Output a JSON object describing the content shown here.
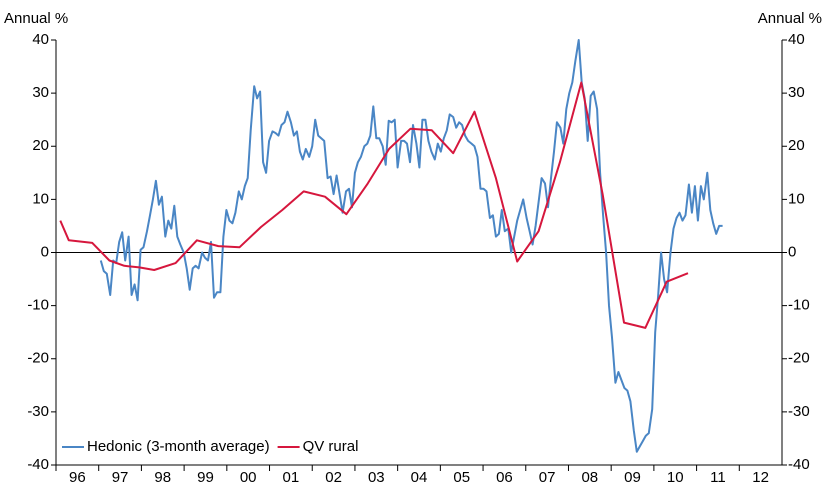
{
  "chart_data": {
    "type": "line",
    "ylabel": "Annual %",
    "y2label": "Annual %",
    "xlim": [
      1996,
      2013
    ],
    "xticks": [
      {
        "value": 1996.5,
        "label": "96"
      },
      {
        "value": 1997.5,
        "label": "97"
      },
      {
        "value": 1998.5,
        "label": "98"
      },
      {
        "value": 1999.5,
        "label": "99"
      },
      {
        "value": 2000.5,
        "label": "00"
      },
      {
        "value": 2001.5,
        "label": "01"
      },
      {
        "value": 2002.5,
        "label": "02"
      },
      {
        "value": 2003.5,
        "label": "03"
      },
      {
        "value": 2004.5,
        "label": "04"
      },
      {
        "value": 2005.5,
        "label": "05"
      },
      {
        "value": 2006.5,
        "label": "06"
      },
      {
        "value": 2007.5,
        "label": "07"
      },
      {
        "value": 2008.5,
        "label": "08"
      },
      {
        "value": 2009.5,
        "label": "09"
      },
      {
        "value": 2010.5,
        "label": "10"
      },
      {
        "value": 2011.5,
        "label": "11"
      },
      {
        "value": 2012.5,
        "label": "12"
      }
    ],
    "ylim": [
      -40,
      40
    ],
    "yticks": [
      -40,
      -30,
      -20,
      -10,
      0,
      10,
      20,
      30,
      40
    ],
    "y2lim": [
      -40,
      40
    ],
    "y2ticks": [
      -40,
      -30,
      -20,
      -10,
      0,
      10,
      20,
      30,
      40
    ],
    "legend": "lower left",
    "series": [
      {
        "name": "Hedonic (3-month average)",
        "color": "#4a86c5",
        "x": [
          1997.05,
          1997.12,
          1997.19,
          1997.27,
          1997.34,
          1997.41,
          1997.48,
          1997.55,
          1997.62,
          1997.7,
          1997.77,
          1997.84,
          1997.91,
          1997.98,
          1998.05,
          1998.13,
          1998.2,
          1998.27,
          1998.34,
          1998.41,
          1998.48,
          1998.56,
          1998.63,
          1998.7,
          1998.77,
          1998.84,
          1998.91,
          1998.99,
          1999.06,
          1999.13,
          1999.2,
          1999.27,
          1999.34,
          1999.42,
          1999.49,
          1999.56,
          1999.63,
          1999.7,
          1999.77,
          1999.85,
          1999.92,
          1999.99,
          2000.06,
          2000.13,
          2000.2,
          2000.28,
          2000.35,
          2000.42,
          2000.49,
          2000.56,
          2000.64,
          2000.71,
          2000.78,
          2000.85,
          2000.92,
          2000.99,
          2001.07,
          2001.14,
          2001.21,
          2001.28,
          2001.35,
          2001.42,
          2001.5,
          2001.57,
          2001.64,
          2001.71,
          2001.78,
          2001.85,
          2001.93,
          2002.0,
          2002.07,
          2002.14,
          2002.21,
          2002.28,
          2002.36,
          2002.43,
          2002.5,
          2002.57,
          2002.64,
          2002.71,
          2002.79,
          2002.86,
          2002.93,
          2003.0,
          2003.07,
          2003.14,
          2003.22,
          2003.29,
          2003.36,
          2003.43,
          2003.5,
          2003.57,
          2003.65,
          2003.72,
          2003.79,
          2003.86,
          2003.93,
          2004.0,
          2004.08,
          2004.15,
          2004.22,
          2004.29,
          2004.36,
          2004.44,
          2004.51,
          2004.58,
          2004.65,
          2004.72,
          2004.79,
          2004.87,
          2004.94,
          2005.01,
          2005.08,
          2005.15,
          2005.22,
          2005.3,
          2005.37,
          2005.44,
          2005.51,
          2005.58,
          2005.65,
          2005.73,
          2005.8,
          2005.87,
          2005.94,
          2006.01,
          2006.08,
          2006.16,
          2006.23,
          2006.3,
          2006.37,
          2006.44,
          2006.51,
          2006.59,
          2006.66,
          2006.73,
          2006.8,
          2006.87,
          2006.94,
          2007.02,
          2007.09,
          2007.16,
          2007.23,
          2007.3,
          2007.37,
          2007.45,
          2007.52,
          2007.59,
          2007.66,
          2007.73,
          2007.81,
          2007.88,
          2007.95,
          2008.02,
          2008.09,
          2008.16,
          2008.24,
          2008.31,
          2008.38,
          2008.45,
          2008.52,
          2008.59,
          2008.67,
          2008.74,
          2008.81,
          2008.88,
          2008.95,
          2009.02,
          2009.1,
          2009.17,
          2009.24,
          2009.31,
          2009.38,
          2009.45,
          2009.53,
          2009.6,
          2009.67,
          2009.74,
          2009.81,
          2009.88,
          2009.96,
          2010.03,
          2010.1,
          2010.17,
          2010.24,
          2010.31,
          2010.39,
          2010.46,
          2010.53,
          2010.6,
          2010.67,
          2010.74,
          2010.82,
          2010.89,
          2010.96,
          2011.03,
          2011.1,
          2011.17,
          2011.25,
          2011.32,
          2011.39,
          2011.46,
          2011.53,
          2011.61
        ],
        "values": [
          -1.5,
          -3.5,
          -4,
          -8,
          -1.5,
          -2,
          2,
          3.8,
          -1.5,
          3,
          -8,
          -6,
          -9,
          0.5,
          1,
          4,
          7,
          10,
          13.5,
          9,
          10.5,
          3,
          6,
          4.5,
          8.8,
          3,
          1.5,
          0,
          -3,
          -7,
          -3,
          -2.5,
          -3,
          0,
          -1,
          -1.5,
          2,
          -8.5,
          -7.5,
          -7.5,
          3,
          8,
          6,
          5.5,
          7.5,
          11.5,
          10,
          12.5,
          14,
          23,
          31.3,
          29,
          30.3,
          17,
          15,
          21,
          22.8,
          22.5,
          22,
          24,
          24.5,
          26.5,
          24.5,
          22,
          22.8,
          19,
          17.5,
          19.5,
          18,
          20,
          25,
          22,
          21.5,
          21,
          14,
          14.3,
          11,
          14.5,
          11,
          7.5,
          11.5,
          12,
          8.5,
          15,
          17,
          18,
          20,
          20.5,
          22,
          27.5,
          21.5,
          21.5,
          20,
          16.5,
          24.8,
          24.5,
          25,
          16,
          21,
          21,
          20.5,
          17,
          24,
          20.5,
          16,
          25,
          25,
          21,
          19,
          17.5,
          20.5,
          19,
          21.5,
          23,
          26,
          25.5,
          23.5,
          24.5,
          24,
          22,
          21,
          20.5,
          20,
          18,
          12,
          12,
          11.5,
          6.5,
          7,
          3,
          3.5,
          8,
          4,
          4.5,
          0,
          3,
          6,
          8,
          10,
          6.5,
          4,
          1.5,
          5,
          9.5,
          14,
          13,
          8.5,
          14,
          19,
          24.5,
          23.5,
          20.5,
          27,
          30,
          32,
          36,
          40,
          32,
          29,
          21,
          29.5,
          30.3,
          27,
          15,
          7,
          0,
          -10,
          -16,
          -24.5,
          -22.5,
          -24,
          -25.5,
          -26,
          -28,
          -33.5,
          -37.5,
          -36.5,
          -35.5,
          -34.5,
          -34,
          -29.5,
          -15,
          -8,
          0,
          -5,
          -7.5,
          0,
          4.5,
          6.5,
          7.5,
          6,
          7,
          12.8,
          7.5,
          12.5,
          6,
          12.5,
          10,
          15,
          8,
          5.5,
          3.5,
          5,
          5
        ]
      },
      {
        "name": "QV rural",
        "color": "#d6173d",
        "x": [
          1996.1,
          1996.3,
          1996.85,
          1997.25,
          1997.6,
          1997.95,
          1998.3,
          1998.8,
          1999.3,
          1999.8,
          2000.3,
          2000.8,
          2001.3,
          2001.8,
          2002.3,
          2002.8,
          2003.3,
          2003.8,
          2004.3,
          2004.8,
          2005.3,
          2005.8,
          2006.3,
          2006.8,
          2007.3,
          2007.8,
          2008.3,
          2008.8,
          2009.3,
          2009.8,
          2010.3,
          2010.8
        ],
        "values": [
          6,
          2.3,
          1.8,
          -1.5,
          -2.5,
          -2.8,
          -3.3,
          -2,
          2.3,
          1.2,
          1,
          4.8,
          8,
          11.5,
          10.5,
          7.2,
          13,
          19.5,
          23.3,
          23,
          18.7,
          26.5,
          14,
          -1.7,
          4,
          17,
          32,
          11,
          -13.2,
          -14.2,
          -5.5,
          -3.9
        ]
      }
    ]
  }
}
